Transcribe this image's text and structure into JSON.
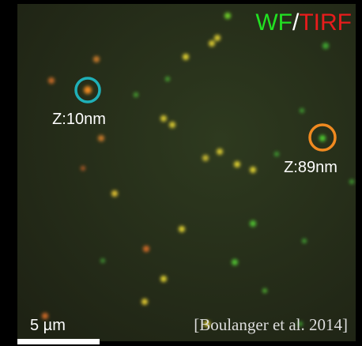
{
  "legend": {
    "wf": "WF",
    "separator": "/",
    "tirf": "TIRF"
  },
  "annotations": [
    {
      "label": "Z:10nm"
    },
    {
      "label": "Z:89nm"
    }
  ],
  "scale_bar": {
    "label": "5 µm"
  },
  "citation": "[Boulanger et al. 2014]"
}
